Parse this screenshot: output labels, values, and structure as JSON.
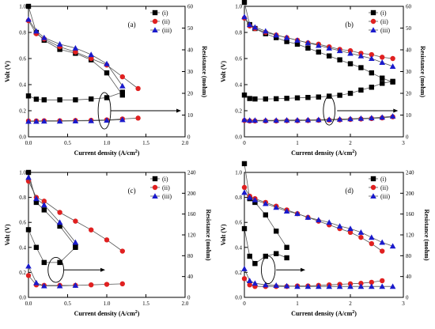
{
  "chart_data": [
    {
      "type": "scatter",
      "panel_label": "(a)",
      "xlabel": "Current density (A/cm",
      "xlabel_sup": "2",
      "xlabel_end": ")",
      "ylabel_left": "Volt (V)",
      "ylabel_right": "Resistance (mohm)",
      "xlim": [
        0,
        2.0
      ],
      "ylim_left": [
        0,
        1.0
      ],
      "ylim_right": [
        0,
        60
      ],
      "xticks": [
        0.0,
        0.5,
        1.0,
        1.5,
        2.0
      ],
      "xtick_labels": [
        "0.0",
        "0.5",
        "1.0",
        "1.5",
        "2.0"
      ],
      "yticks_left": [
        0.0,
        0.2,
        0.4,
        0.6,
        0.8,
        1.0
      ],
      "ytick_labels_left": [
        "0.0",
        "0.2",
        "0.4",
        "0.6",
        "0.8",
        "1.0"
      ],
      "yticks_right": [
        0,
        10,
        20,
        30,
        40,
        50,
        60
      ],
      "ytick_labels_right": [
        "0",
        "10",
        "20",
        "30",
        "40",
        "50",
        "60"
      ],
      "legend": [
        "(i)",
        "(ii)",
        "(iii)"
      ],
      "legend_position": "top-right",
      "series": [
        {
          "name": "(i)",
          "axis": "left",
          "marker": "square",
          "color": "#000000",
          "x": [
            0.0,
            0.1,
            0.2,
            0.4,
            0.6,
            0.8,
            1.0,
            1.2
          ],
          "y": [
            1.0,
            0.8,
            0.74,
            0.67,
            0.64,
            0.59,
            0.49,
            0.32
          ]
        },
        {
          "name": "(ii)",
          "axis": "left",
          "marker": "circle",
          "color": "#e02020",
          "x": [
            0.0,
            0.1,
            0.2,
            0.4,
            0.6,
            0.8,
            1.0,
            1.2,
            1.4
          ],
          "y": [
            0.89,
            0.79,
            0.75,
            0.69,
            0.65,
            0.6,
            0.55,
            0.46,
            0.37
          ]
        },
        {
          "name": "(iii)",
          "axis": "left",
          "marker": "triangle",
          "color": "#1a1acc",
          "x": [
            0.0,
            0.1,
            0.2,
            0.4,
            0.6,
            0.8,
            1.0,
            1.2
          ],
          "y": [
            0.9,
            0.81,
            0.76,
            0.71,
            0.68,
            0.63,
            0.56,
            0.39
          ]
        },
        {
          "name": "(i)",
          "axis": "right",
          "marker": "square",
          "color": "#000000",
          "x": [
            0.0,
            0.1,
            0.2,
            0.4,
            0.6,
            0.8,
            1.0,
            1.2
          ],
          "y": [
            18.8,
            17.3,
            17.0,
            17.0,
            17.0,
            17.4,
            18.0,
            20.5
          ]
        },
        {
          "name": "(ii)",
          "axis": "right",
          "marker": "circle",
          "color": "#e02020",
          "x": [
            0.0,
            0.1,
            0.2,
            0.4,
            0.6,
            0.8,
            1.0,
            1.2,
            1.4
          ],
          "y": [
            7.3,
            7.3,
            7.4,
            7.4,
            7.5,
            7.6,
            7.8,
            8.2,
            8.6
          ]
        },
        {
          "name": "(iii)",
          "axis": "right",
          "marker": "triangle",
          "color": "#1a1acc",
          "x": [
            0.0,
            0.1,
            0.2,
            0.4,
            0.6,
            0.8,
            1.0,
            1.2
          ],
          "y": [
            7.1,
            7.1,
            7.2,
            7.2,
            7.3,
            7.4,
            7.6,
            7.9
          ]
        }
      ],
      "annotation": {
        "ellipse_center": [
          0.97,
          0.2
        ],
        "ellipse_radii": [
          0.08,
          0.14
        ],
        "arrow_from": [
          1.05,
          0.2
        ],
        "arrow_to": [
          1.95,
          0.2
        ]
      }
    },
    {
      "type": "scatter",
      "panel_label": "(b)",
      "xlabel": "Current density (A/cm",
      "xlabel_sup": "2",
      "xlabel_end": ")",
      "ylabel_left": "Volt (V)",
      "ylabel_right": "Resistance (mohm)",
      "xlim": [
        0,
        3
      ],
      "ylim_left": [
        0,
        1.0
      ],
      "ylim_right": [
        0,
        60
      ],
      "xticks": [
        0,
        1,
        2,
        3
      ],
      "xtick_labels": [
        "0",
        "1",
        "2",
        "3"
      ],
      "yticks_left": [
        0.0,
        0.2,
        0.4,
        0.6,
        0.8,
        1.0
      ],
      "ytick_labels_left": [
        "0.0",
        "0.2",
        "0.4",
        "0.6",
        "0.8",
        "1.0"
      ],
      "yticks_right": [
        0,
        10,
        20,
        30,
        40,
        50,
        60
      ],
      "ytick_labels_right": [
        "0",
        "10",
        "20",
        "30",
        "40",
        "50",
        "60"
      ],
      "legend": [
        "(i)",
        "(ii)",
        "(iii)"
      ],
      "legend_position": "top-right",
      "series": [
        {
          "name": "(i)",
          "axis": "left",
          "marker": "square",
          "color": "#000000",
          "x": [
            0.0,
            0.1,
            0.2,
            0.4,
            0.6,
            0.8,
            1.0,
            1.2,
            1.4,
            1.6,
            1.8,
            2.0,
            2.2,
            2.4,
            2.6,
            2.8
          ],
          "y": [
            1.03,
            0.86,
            0.83,
            0.79,
            0.76,
            0.73,
            0.71,
            0.68,
            0.65,
            0.62,
            0.59,
            0.56,
            0.53,
            0.49,
            0.45,
            0.42
          ]
        },
        {
          "name": "(ii)",
          "axis": "left",
          "marker": "circle",
          "color": "#e02020",
          "x": [
            0.0,
            0.1,
            0.2,
            0.4,
            0.6,
            0.8,
            1.0,
            1.2,
            1.4,
            1.6,
            1.8,
            2.0,
            2.2,
            2.4,
            2.6,
            2.8
          ],
          "y": [
            0.91,
            0.85,
            0.83,
            0.8,
            0.78,
            0.76,
            0.74,
            0.72,
            0.71,
            0.69,
            0.67,
            0.66,
            0.64,
            0.63,
            0.61,
            0.6
          ]
        },
        {
          "name": "(iii)",
          "axis": "left",
          "marker": "triangle",
          "color": "#1a1acc",
          "x": [
            0.0,
            0.1,
            0.2,
            0.4,
            0.6,
            0.8,
            1.0,
            1.2,
            1.4,
            1.6,
            1.8,
            2.0,
            2.2,
            2.4,
            2.6,
            2.8
          ],
          "y": [
            0.92,
            0.86,
            0.84,
            0.81,
            0.78,
            0.76,
            0.74,
            0.72,
            0.7,
            0.68,
            0.66,
            0.64,
            0.62,
            0.6,
            0.57,
            0.54
          ]
        },
        {
          "name": "(i)",
          "axis": "right",
          "marker": "square",
          "color": "#000000",
          "x": [
            0.0,
            0.1,
            0.2,
            0.4,
            0.6,
            0.8,
            1.0,
            1.2,
            1.4,
            1.6,
            1.8,
            2.0,
            2.2,
            2.4,
            2.6,
            2.8
          ],
          "y": [
            19.2,
            17.6,
            17.4,
            17.4,
            17.5,
            17.7,
            17.9,
            18.1,
            18.3,
            18.7,
            19.1,
            20.0,
            21.5,
            22.8,
            24.6,
            25.5
          ]
        },
        {
          "name": "(ii)",
          "axis": "right",
          "marker": "circle",
          "color": "#e02020",
          "x": [
            0.0,
            0.1,
            0.2,
            0.4,
            0.6,
            0.8,
            1.0,
            1.2,
            1.4,
            1.6,
            1.8,
            2.0,
            2.2,
            2.4,
            2.6,
            2.8
          ],
          "y": [
            7.5,
            7.3,
            7.3,
            7.3,
            7.3,
            7.4,
            7.4,
            7.5,
            7.6,
            7.7,
            7.8,
            8.0,
            8.2,
            8.4,
            8.7,
            9.2
          ]
        },
        {
          "name": "(iii)",
          "axis": "right",
          "marker": "triangle",
          "color": "#1a1acc",
          "x": [
            0.0,
            0.1,
            0.2,
            0.4,
            0.6,
            0.8,
            1.0,
            1.2,
            1.4,
            1.6,
            1.8,
            2.0,
            2.2,
            2.4,
            2.6,
            2.8
          ],
          "y": [
            7.9,
            7.6,
            7.6,
            7.6,
            7.6,
            7.7,
            7.7,
            7.8,
            7.9,
            8.0,
            8.1,
            8.3,
            8.5,
            8.7,
            9.0,
            9.5
          ]
        }
      ],
      "annotation": {
        "ellipse_center": [
          1.6,
          0.2
        ],
        "ellipse_radii": [
          0.11,
          0.11
        ],
        "arrow_from": [
          1.75,
          0.2
        ],
        "arrow_to": [
          2.9,
          0.2
        ]
      }
    },
    {
      "type": "scatter",
      "panel_label": "(c)",
      "xlabel": "Current density (A/cm",
      "xlabel_sup": "2",
      "xlabel_end": ")",
      "ylabel_left": "Volt (V)",
      "ylabel_right": "Resistance (mohm)",
      "xlim": [
        0,
        2.0
      ],
      "ylim_left": [
        0,
        1.0
      ],
      "ylim_right": [
        0,
        240
      ],
      "xticks": [
        0.0,
        0.5,
        1.0,
        1.5,
        2.0
      ],
      "xtick_labels": [
        "0.0",
        "0.5",
        "1.0",
        "1.5",
        "2.0"
      ],
      "yticks_left": [
        0.0,
        0.2,
        0.4,
        0.6,
        0.8,
        1.0
      ],
      "ytick_labels_left": [
        "0.0",
        "0.2",
        "0.4",
        "0.6",
        "0.8",
        "1.0"
      ],
      "yticks_right": [
        0,
        40,
        80,
        120,
        160,
        200,
        240
      ],
      "ytick_labels_right": [
        "0",
        "40",
        "80",
        "120",
        "160",
        "200",
        "240"
      ],
      "legend": [
        "(i)",
        "(ii)",
        "(iii)"
      ],
      "legend_position": "top-right",
      "series": [
        {
          "name": "(i)",
          "axis": "left",
          "marker": "square",
          "color": "#000000",
          "x": [
            0.0,
            0.1,
            0.2,
            0.4,
            0.6
          ],
          "y": [
            1.0,
            0.76,
            0.7,
            0.57,
            0.41
          ]
        },
        {
          "name": "(ii)",
          "axis": "left",
          "marker": "circle",
          "color": "#e02020",
          "x": [
            0.0,
            0.1,
            0.2,
            0.4,
            0.6,
            0.8,
            1.0,
            1.2
          ],
          "y": [
            0.93,
            0.8,
            0.77,
            0.68,
            0.61,
            0.54,
            0.46,
            0.37
          ]
        },
        {
          "name": "(iii)",
          "axis": "left",
          "marker": "triangle",
          "color": "#1a1acc",
          "x": [
            0.0,
            0.1,
            0.2,
            0.4,
            0.6
          ],
          "y": [
            0.96,
            0.79,
            0.74,
            0.6,
            0.44
          ]
        },
        {
          "name": "(i)",
          "axis": "right",
          "marker": "square",
          "color": "#000000",
          "x": [
            0.0,
            0.1,
            0.2,
            0.4,
            0.6
          ],
          "y": [
            130,
            96,
            67,
            67,
            96
          ]
        },
        {
          "name": "(ii)",
          "axis": "right",
          "marker": "circle",
          "color": "#e02020",
          "x": [
            0.0,
            0.1,
            0.2,
            0.4,
            0.6,
            0.8,
            1.0,
            1.2
          ],
          "y": [
            42,
            24,
            23,
            23,
            23,
            24,
            25,
            26
          ]
        },
        {
          "name": "(iii)",
          "axis": "right",
          "marker": "triangle",
          "color": "#1a1acc",
          "x": [
            0.0,
            0.1,
            0.2,
            0.4,
            0.6
          ],
          "y": [
            60,
            28,
            22,
            22,
            23
          ]
        }
      ],
      "annotation": {
        "ellipse_center": [
          0.35,
          0.22
        ],
        "ellipse_radii": [
          0.1,
          0.1
        ],
        "arrow_from": [
          0.45,
          0.22
        ],
        "arrow_to": [
          0.98,
          0.22
        ]
      }
    },
    {
      "type": "scatter",
      "panel_label": "(d)",
      "xlabel": "Current density (A/cm",
      "xlabel_sup": "2",
      "xlabel_end": ")",
      "ylabel_left": "Volt (V)",
      "ylabel_right": "Resistance (mohm)",
      "xlim": [
        0,
        3
      ],
      "ylim_left": [
        0,
        1.0
      ],
      "ylim_right": [
        0,
        240
      ],
      "xticks": [
        0,
        1,
        2,
        3
      ],
      "xtick_labels": [
        "0",
        "1",
        "2",
        "3"
      ],
      "yticks_left": [
        0.0,
        0.2,
        0.4,
        0.6,
        0.8,
        1.0
      ],
      "ytick_labels_left": [
        "0.0",
        "0.2",
        "0.4",
        "0.6",
        "0.8",
        "1.0"
      ],
      "yticks_right": [
        0,
        40,
        80,
        120,
        160,
        200,
        240
      ],
      "ytick_labels_right": [
        "0",
        "40",
        "80",
        "120",
        "160",
        "200",
        "240"
      ],
      "legend": [
        "(i)",
        "(ii)",
        "(iii)"
      ],
      "legend_position": "top-right",
      "series": [
        {
          "name": "(i)",
          "axis": "left",
          "marker": "square",
          "color": "#000000",
          "x": [
            0.0,
            0.1,
            0.2,
            0.4,
            0.6,
            0.8
          ],
          "y": [
            1.07,
            0.79,
            0.76,
            0.66,
            0.53,
            0.4
          ]
        },
        {
          "name": "(ii)",
          "axis": "left",
          "marker": "circle",
          "color": "#e02020",
          "x": [
            0.0,
            0.1,
            0.2,
            0.4,
            0.6,
            0.8,
            1.0,
            1.2,
            1.4,
            1.6,
            1.8,
            2.0,
            2.2,
            2.4,
            2.6
          ],
          "y": [
            0.88,
            0.81,
            0.79,
            0.76,
            0.73,
            0.7,
            0.67,
            0.64,
            0.61,
            0.58,
            0.55,
            0.52,
            0.48,
            0.43,
            0.37
          ]
        },
        {
          "name": "(iii)",
          "axis": "left",
          "marker": "triangle",
          "color": "#1a1acc",
          "x": [
            0.0,
            0.1,
            0.2,
            0.4,
            0.6,
            0.8,
            1.0,
            1.2,
            1.4,
            1.6,
            1.8,
            2.0,
            2.2,
            2.4,
            2.6,
            2.8
          ],
          "y": [
            0.84,
            0.8,
            0.78,
            0.75,
            0.72,
            0.69,
            0.67,
            0.64,
            0.62,
            0.6,
            0.57,
            0.55,
            0.52,
            0.48,
            0.44,
            0.41
          ]
        },
        {
          "name": "(i)",
          "axis": "right",
          "marker": "square",
          "color": "#000000",
          "x": [
            0.0,
            0.1,
            0.2,
            0.4,
            0.6,
            0.8
          ],
          "y": [
            132,
            79,
            65,
            79,
            84,
            76
          ]
        },
        {
          "name": "(ii)",
          "axis": "right",
          "marker": "circle",
          "color": "#e02020",
          "x": [
            0.0,
            0.1,
            0.2,
            0.4,
            0.6,
            0.8,
            1.0,
            1.2,
            1.4,
            1.6,
            1.8,
            2.0,
            2.2,
            2.4,
            2.6
          ],
          "y": [
            36,
            24,
            21,
            21,
            21,
            21,
            22,
            22,
            23,
            24,
            25,
            26,
            27,
            29,
            32
          ]
        },
        {
          "name": "(iii)",
          "axis": "right",
          "marker": "triangle",
          "color": "#1a1acc",
          "x": [
            0.0,
            0.1,
            0.2,
            0.4,
            0.6,
            0.8,
            1.0,
            1.2,
            1.4,
            1.6,
            1.8,
            2.0,
            2.2,
            2.4,
            2.6,
            2.8
          ],
          "y": [
            55,
            32,
            27,
            24,
            23,
            22,
            21,
            21,
            21,
            21,
            21,
            21,
            21,
            21,
            21,
            21
          ]
        }
      ],
      "annotation": {
        "ellipse_center": [
          0.45,
          0.22
        ],
        "ellipse_radii": [
          0.13,
          0.11
        ],
        "arrow_from": [
          0.6,
          0.22
        ],
        "arrow_to": [
          1.15,
          0.22
        ]
      }
    }
  ]
}
